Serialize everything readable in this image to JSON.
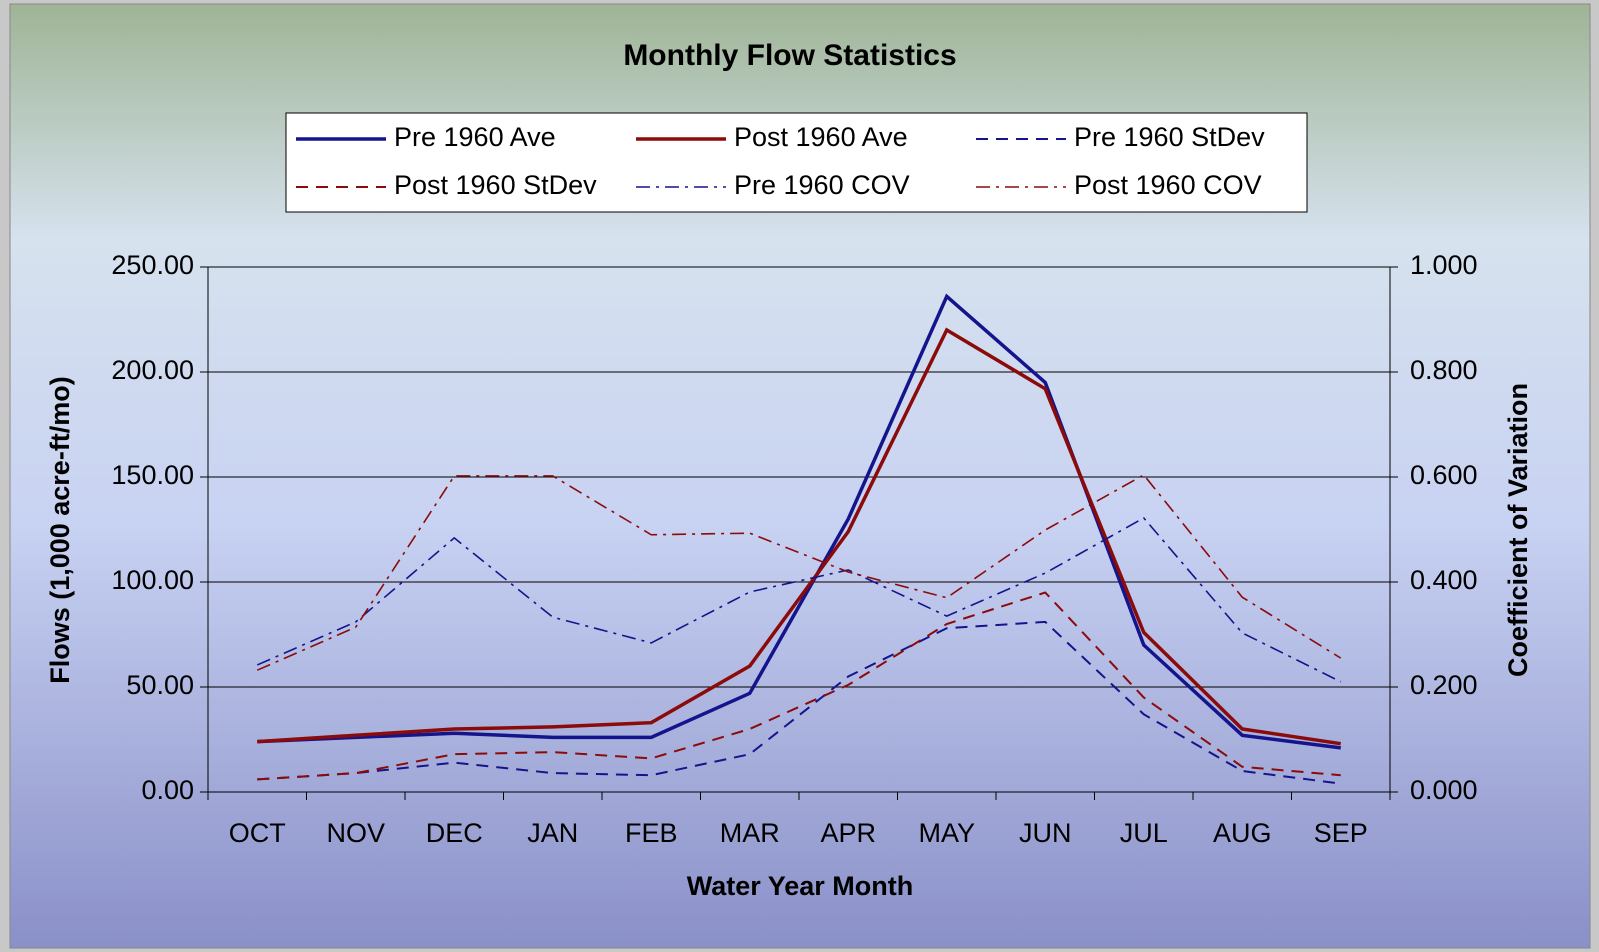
{
  "chart_data": {
    "type": "line",
    "title": "Monthly Flow Statistics",
    "xlabel": "Water Year Month",
    "ylabel": "Flows (1,000 acre-ft/mo)",
    "y2label": "Coefficient of Variation",
    "categories": [
      "OCT",
      "NOV",
      "DEC",
      "JAN",
      "FEB",
      "MAR",
      "APR",
      "MAY",
      "JUN",
      "JUL",
      "AUG",
      "SEP"
    ],
    "series": [
      {
        "name": "Pre 1960 Ave",
        "color": "#14148c",
        "dash": "solid",
        "values": [
          24,
          26,
          28,
          26,
          26,
          47,
          130,
          236,
          195,
          70,
          27,
          21
        ]
      },
      {
        "name": "Post 1960 Ave",
        "color": "#8b0a0a",
        "dash": "solid",
        "values": [
          24,
          27,
          30,
          31,
          33,
          60,
          124,
          220,
          192,
          76,
          30,
          23
        ]
      },
      {
        "name": "Pre 1960 StDev",
        "color": "#14148c",
        "dash": "dash",
        "values": [
          6,
          9,
          14,
          9,
          8,
          18,
          55,
          78,
          81,
          37,
          10,
          4
        ]
      },
      {
        "name": "Post 1960 StDev",
        "color": "#8b0a0a",
        "dash": "dash",
        "values": [
          6,
          9,
          18,
          19,
          16,
          30,
          51,
          80,
          95,
          45,
          12,
          8
        ]
      },
      {
        "name": "Pre 1960 COV",
        "color": "#14148c",
        "dash": "dashdot",
        "axis": "y2",
        "values": [
          0.242,
          0.324,
          0.484,
          0.333,
          0.284,
          0.381,
          0.423,
          0.335,
          0.417,
          0.522,
          0.303,
          0.21
        ]
      },
      {
        "name": "Post 1960 COV",
        "color": "#8b0a0a",
        "dash": "dashdot",
        "axis": "y2",
        "values": [
          0.232,
          0.314,
          0.602,
          0.602,
          0.49,
          0.493,
          0.419,
          0.37,
          0.499,
          0.604,
          0.371,
          0.255
        ]
      }
    ],
    "ylim": [
      0,
      250
    ],
    "yticks": [
      {
        "value": 0,
        "label": "0.00"
      },
      {
        "value": 50,
        "label": "50.00"
      },
      {
        "value": 100,
        "label": "100.00"
      },
      {
        "value": 150,
        "label": "150.00"
      },
      {
        "value": 200,
        "label": "200.00"
      },
      {
        "value": 250,
        "label": "250.00"
      }
    ],
    "y2lim": [
      0,
      1
    ],
    "y2ticks": [
      {
        "value": 0,
        "label": "0.000"
      },
      {
        "value": 0.2,
        "label": "0.200"
      },
      {
        "value": 0.4,
        "label": "0.400"
      },
      {
        "value": 0.6,
        "label": "0.600"
      },
      {
        "value": 0.8,
        "label": "0.800"
      },
      {
        "value": 1,
        "label": "1.000"
      }
    ],
    "grid": true,
    "legend": "top"
  }
}
